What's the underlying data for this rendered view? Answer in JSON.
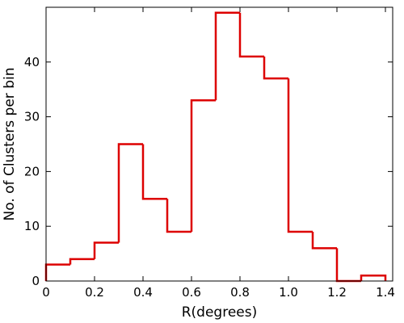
{
  "chart_data": {
    "type": "bar",
    "style": "step-histogram",
    "title": "",
    "xlabel": "R(degrees)",
    "ylabel": "No. of Clusters per bin",
    "xlim": [
      0,
      1.43
    ],
    "ylim": [
      0,
      50
    ],
    "bin_width": 0.1,
    "bin_starts": [
      0,
      0.1,
      0.2,
      0.3,
      0.4,
      0.5,
      0.6,
      0.7,
      0.8,
      0.9,
      1.0,
      1.1,
      1.2,
      1.3
    ],
    "values": [
      3,
      4,
      7,
      25,
      15,
      9,
      33,
      49,
      41,
      37,
      9,
      6,
      0,
      1
    ],
    "x_ticks": [
      0,
      0.2,
      0.4,
      0.6,
      0.8,
      1.0,
      1.2,
      1.4
    ],
    "x_tick_labels": [
      "0",
      "0.2",
      "0.4",
      "0.6",
      "0.8",
      "1.0",
      "1.2",
      "1.4"
    ],
    "y_ticks": [
      0,
      10,
      20,
      30,
      40
    ],
    "y_tick_labels": [
      "0",
      "10",
      "20",
      "30",
      "40"
    ],
    "color": "#dd0000",
    "grid": false,
    "legend": "none"
  }
}
